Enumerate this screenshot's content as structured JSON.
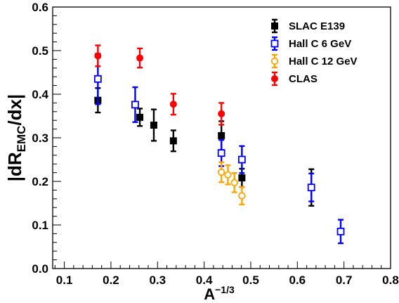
{
  "chart_data": {
    "type": "scatter",
    "title": "",
    "xlabel": {
      "base": "A",
      "sup": "−1/3"
    },
    "ylabel": {
      "open": "|dR",
      "sub": "EMC",
      "close": "/dx|"
    },
    "xlim": [
      0.075,
      0.8
    ],
    "ylim": [
      0.0,
      0.6
    ],
    "x_ticks": [
      0.1,
      0.2,
      0.3,
      0.4,
      0.5,
      0.6,
      0.7,
      0.8
    ],
    "x_tick_labels": [
      "0.1",
      "0.2",
      "0.3",
      "0.4",
      "0.5",
      "0.6",
      "0.7",
      "0.8"
    ],
    "y_ticks": [
      0.0,
      0.1,
      0.2,
      0.3,
      0.4,
      0.5,
      0.6
    ],
    "y_tick_labels": [
      "0.0",
      "0.1",
      "0.2",
      "0.3",
      "0.4",
      "0.5",
      "0.6"
    ],
    "grid": false,
    "legend_position": "top-right",
    "series": [
      {
        "name": "SLAC E139",
        "color": "#000000",
        "marker": "square-filled",
        "points": [
          {
            "x": 0.172,
            "y": 0.386,
            "err": 0.028
          },
          {
            "x": 0.262,
            "y": 0.347,
            "err": 0.02
          },
          {
            "x": 0.292,
            "y": 0.329,
            "err": 0.036
          },
          {
            "x": 0.334,
            "y": 0.293,
            "err": 0.024
          },
          {
            "x": 0.437,
            "y": 0.305,
            "err": 0.033
          },
          {
            "x": 0.481,
            "y": 0.208,
            "err": 0.021
          },
          {
            "x": 0.63,
            "y": 0.186,
            "err": 0.042
          }
        ]
      },
      {
        "name": "Hall C 6 GeV",
        "color": "#0000ff",
        "marker": "square-open",
        "points": [
          {
            "x": 0.172,
            "y": 0.435,
            "err": 0.058
          },
          {
            "x": 0.252,
            "y": 0.376,
            "err": 0.04
          },
          {
            "x": 0.437,
            "y": 0.265,
            "err": 0.03
          },
          {
            "x": 0.481,
            "y": 0.25,
            "err": 0.031
          },
          {
            "x": 0.63,
            "y": 0.186,
            "err": 0.032
          },
          {
            "x": 0.693,
            "y": 0.085,
            "err": 0.027
          }
        ]
      },
      {
        "name": "Hall C 12 GeV",
        "color": "#ffa500",
        "marker": "circle-open",
        "points": [
          {
            "x": 0.437,
            "y": 0.221,
            "err": 0.023
          },
          {
            "x": 0.451,
            "y": 0.215,
            "err": 0.022
          },
          {
            "x": 0.465,
            "y": 0.197,
            "err": 0.022
          },
          {
            "x": 0.481,
            "y": 0.167,
            "err": 0.02
          }
        ]
      },
      {
        "name": "CLAS",
        "color": "#ff0000",
        "marker": "circle-filled",
        "points": [
          {
            "x": 0.172,
            "y": 0.488,
            "err": 0.024
          },
          {
            "x": 0.262,
            "y": 0.483,
            "err": 0.022
          },
          {
            "x": 0.334,
            "y": 0.377,
            "err": 0.024
          },
          {
            "x": 0.437,
            "y": 0.355,
            "err": 0.025
          }
        ]
      }
    ]
  }
}
